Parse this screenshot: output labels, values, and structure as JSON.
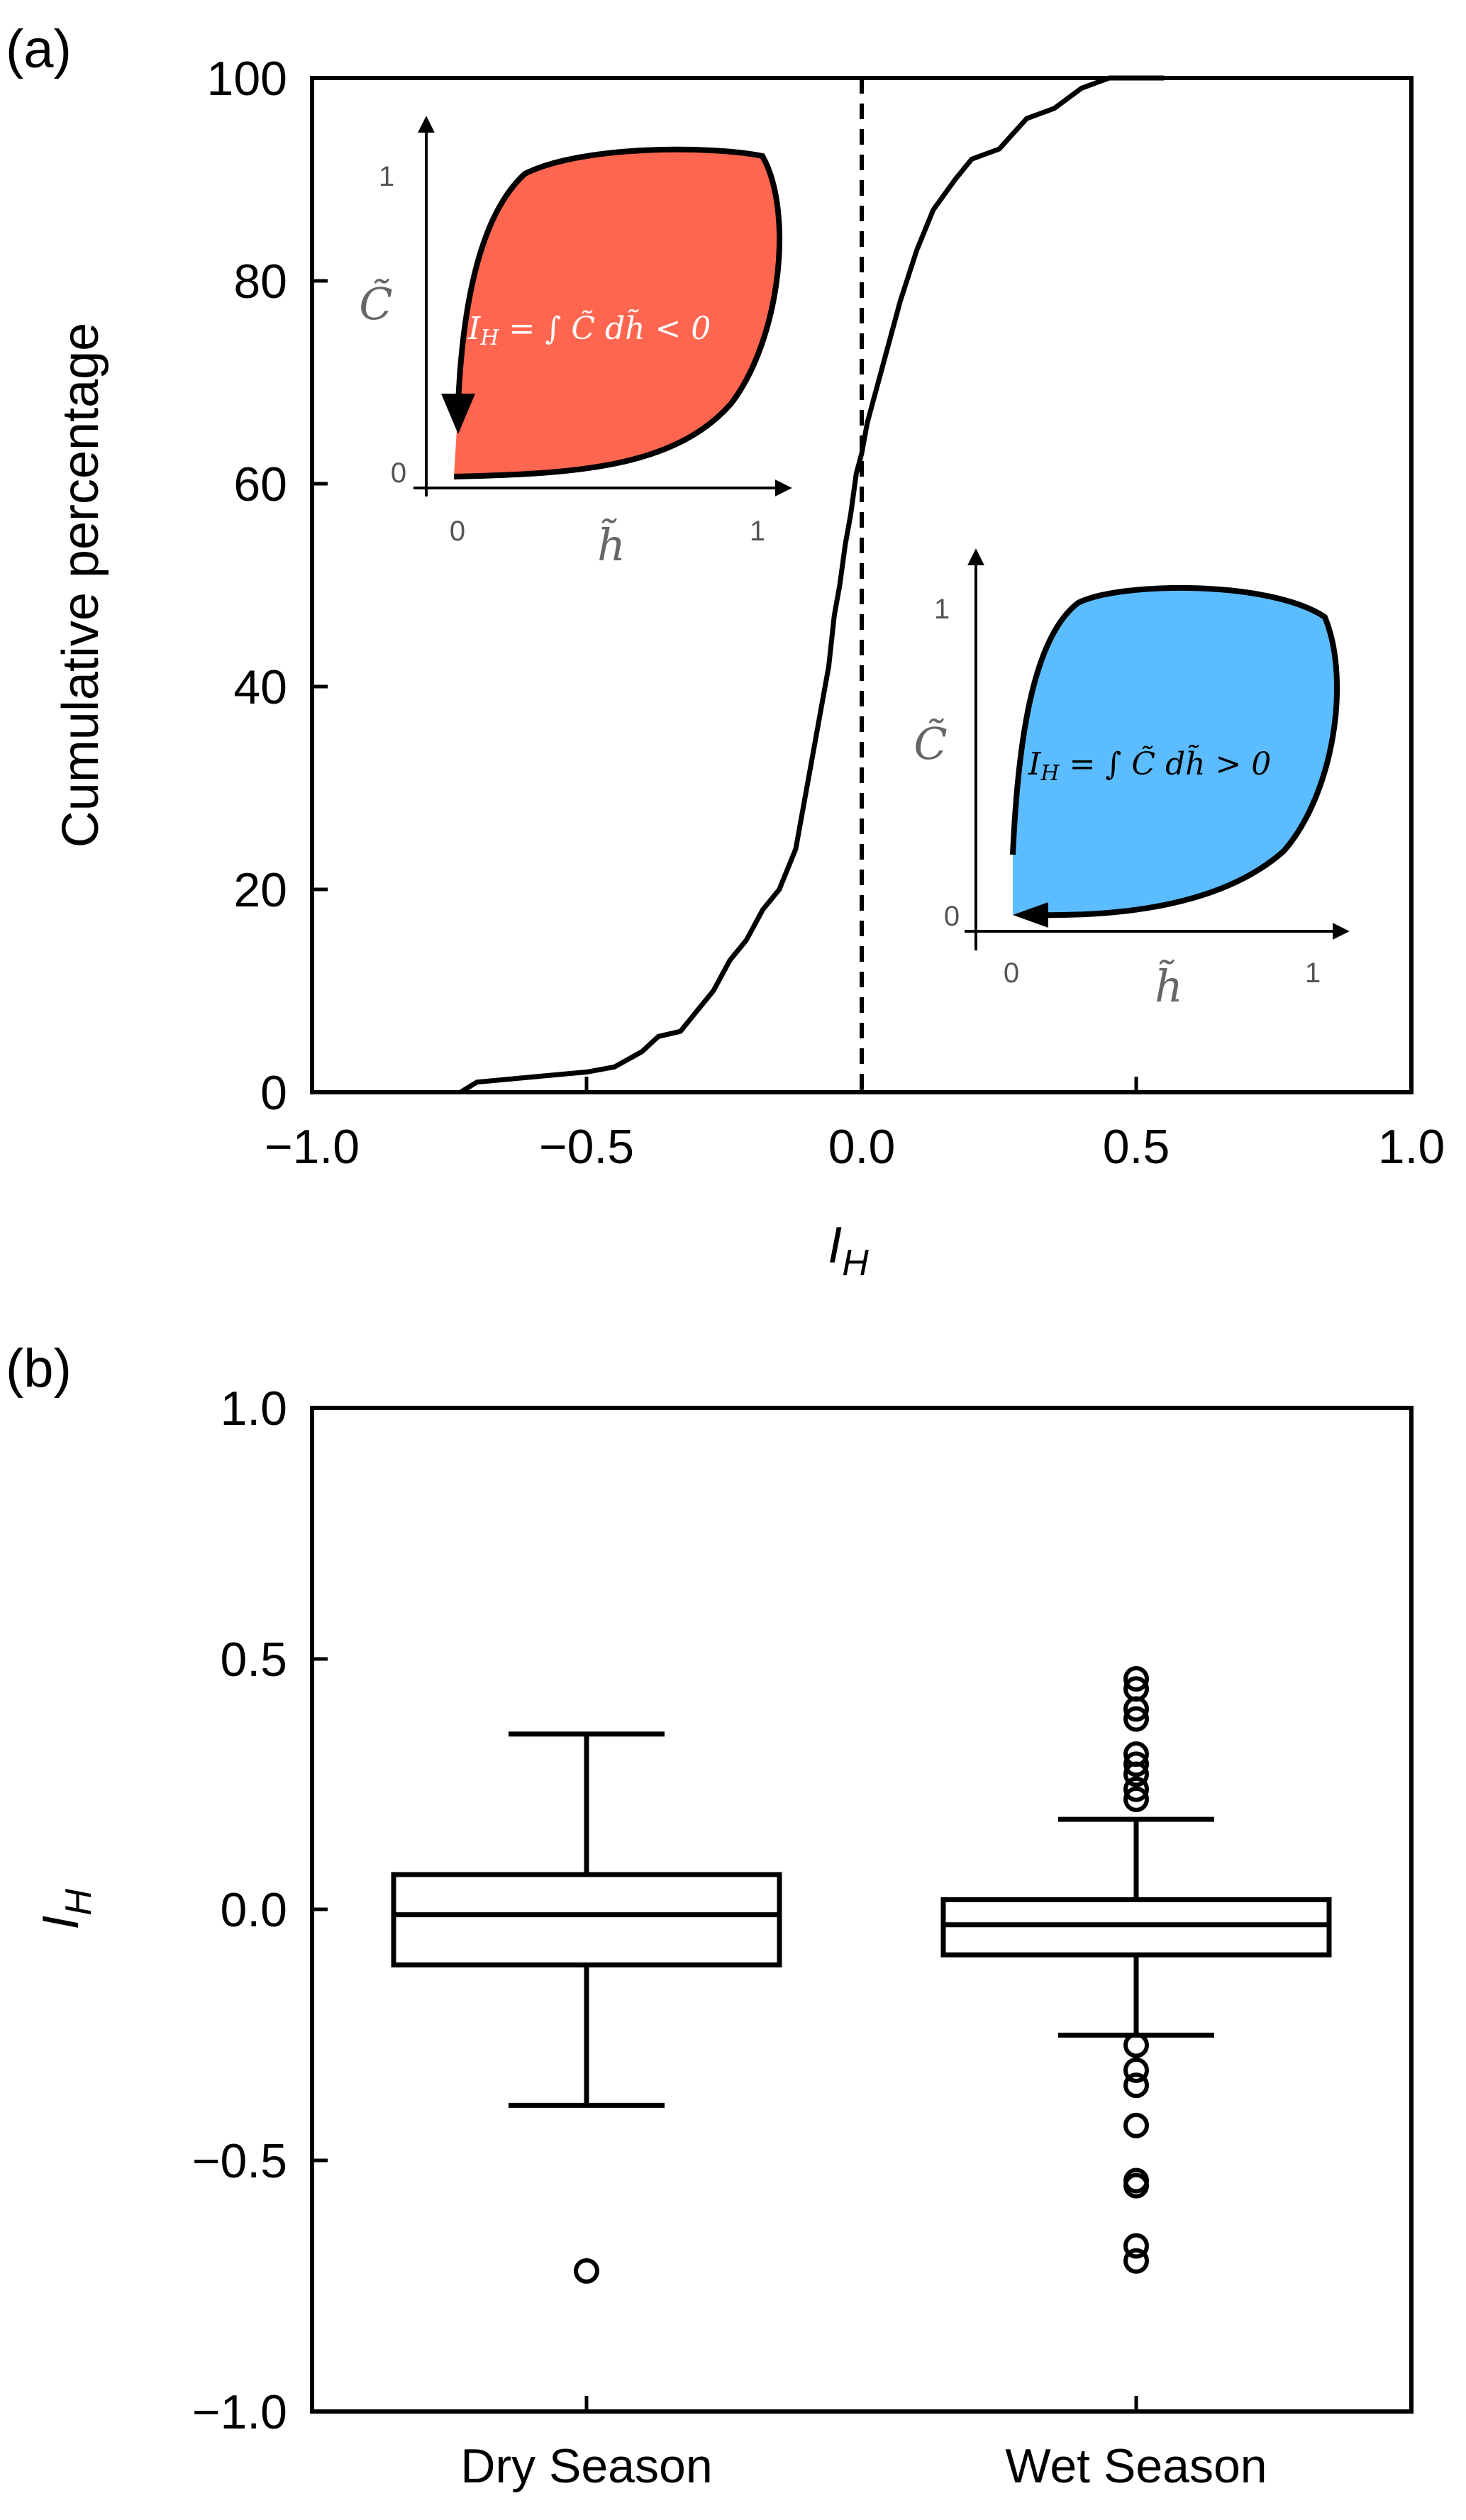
{
  "panel_a": {
    "label": "(a)",
    "xlabel": "I_H",
    "ylabel": "Cumulative percentage",
    "x_ticks": [
      "−1.0",
      "−0.5",
      "0.0",
      "0.5",
      "1.0"
    ],
    "y_ticks": [
      "0",
      "20",
      "40",
      "60",
      "80",
      "100"
    ],
    "inset_neg": {
      "formula_lhs": "I",
      "formula_sub": "H",
      "formula_rhs": " = ∫ C̃ dh̃ < 0",
      "ylabel": "C̃",
      "xlabel": "h̃",
      "x_ticks": [
        "0",
        "1"
      ],
      "y_ticks": [
        "0",
        "1"
      ],
      "fill_color": "#ff6650"
    },
    "inset_pos": {
      "formula_lhs": "I",
      "formula_sub": "H",
      "formula_rhs": " = ∫ C̃ dh̃ > 0",
      "ylabel": "C̃",
      "xlabel": "h̃",
      "x_ticks": [
        "0",
        "1"
      ],
      "y_ticks": [
        "0",
        "1"
      ],
      "fill_color": "#5bbcff"
    }
  },
  "panel_b": {
    "label": "(b)",
    "ylabel": "I_H",
    "y_ticks": [
      "−1.0",
      "−0.5",
      "0.0",
      "0.5",
      "1.0"
    ]
  },
  "chart_data": [
    {
      "type": "line",
      "xlabel": "I_H",
      "ylabel": "Cumulative percentage",
      "xlim": [
        -1.0,
        1.0
      ],
      "ylim": [
        0,
        100
      ],
      "reference_line": {
        "x": 0.0,
        "style": "dashed"
      },
      "series": [
        {
          "x": [
            -0.73,
            -0.7,
            -0.6,
            -0.5,
            -0.45,
            -0.4,
            -0.37,
            -0.33,
            -0.3,
            -0.27,
            -0.24,
            -0.21,
            -0.18,
            -0.15,
            -0.12,
            -0.1,
            -0.08,
            -0.06,
            -0.05,
            -0.04,
            -0.03,
            -0.02,
            -0.01,
            0.0,
            0.01,
            0.02,
            0.03,
            0.05,
            0.07,
            0.1,
            0.13,
            0.17,
            0.2,
            0.25,
            0.3,
            0.35,
            0.4,
            0.45
          ],
          "y": [
            0,
            1,
            1.5,
            2,
            2.5,
            4,
            5.5,
            6,
            8,
            10,
            13,
            15,
            18,
            20,
            24,
            30,
            36,
            42,
            47,
            50,
            54,
            57,
            61,
            63,
            66,
            68,
            70,
            74,
            78,
            83,
            87,
            90,
            92,
            93,
            96,
            97,
            99,
            100
          ]
        }
      ]
    },
    {
      "type": "box",
      "ylabel": "I_H",
      "ylim": [
        -1.0,
        1.0
      ],
      "categories": [
        "Dry Season",
        "Wet Season"
      ],
      "boxes": [
        {
          "whisker_low": -0.39,
          "q1": -0.11,
          "median": -0.01,
          "q3": 0.07,
          "whisker_high": 0.35,
          "outliers": [
            -0.72
          ]
        },
        {
          "whisker_low": -0.25,
          "q1": -0.09,
          "median": -0.03,
          "q3": 0.02,
          "whisker_high": 0.18,
          "outliers": [
            0.46,
            0.44,
            0.4,
            0.38,
            0.31,
            0.29,
            0.27,
            0.24,
            0.22,
            -0.27,
            -0.32,
            -0.35,
            -0.43,
            -0.54,
            -0.55,
            -0.67,
            -0.7
          ]
        }
      ]
    }
  ]
}
